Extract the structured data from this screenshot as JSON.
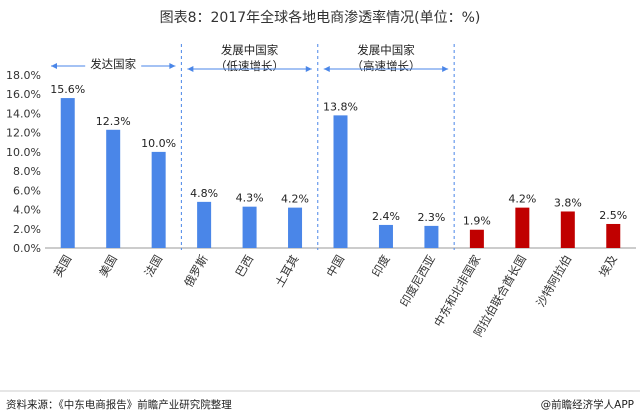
{
  "chart_data": {
    "type": "bar",
    "title": "图表8：2017年全球各地电商渗透率情况(单位：%)",
    "categories": [
      "英国",
      "美国",
      "法国",
      "俄罗斯",
      "巴西",
      "土耳其",
      "中国",
      "印度",
      "印度尼西亚",
      "中东和北非国家",
      "阿拉伯联合酋长国",
      "沙特阿拉伯",
      "埃及"
    ],
    "values": [
      15.6,
      12.3,
      10.0,
      4.8,
      4.3,
      4.2,
      13.8,
      2.4,
      2.3,
      1.9,
      4.2,
      3.8,
      2.5
    ],
    "value_labels": [
      "15.6%",
      "12.3%",
      "10.0%",
      "4.8%",
      "4.3%",
      "4.2%",
      "13.8%",
      "2.4%",
      "2.3%",
      "1.9%",
      "4.2%",
      "3.8%",
      "2.5%"
    ],
    "bar_colors": [
      "#4a86e8",
      "#4a86e8",
      "#4a86e8",
      "#4a86e8",
      "#4a86e8",
      "#4a86e8",
      "#4a86e8",
      "#4a86e8",
      "#4a86e8",
      "#c00000",
      "#c00000",
      "#c00000",
      "#c00000"
    ],
    "yticks": [
      "0.0%",
      "2.0%",
      "4.0%",
      "6.0%",
      "8.0%",
      "10.0%",
      "12.0%",
      "14.0%",
      "16.0%",
      "18.0%"
    ],
    "ylim": [
      0,
      18
    ],
    "grid": false,
    "xlabel": "",
    "ylabel": "",
    "groups": [
      {
        "lines": [
          "发达国家"
        ],
        "start": 0,
        "end": 2
      },
      {
        "lines": [
          "发展中国家",
          "（低速增长）"
        ],
        "start": 3,
        "end": 5
      },
      {
        "lines": [
          "发展中国家",
          "（高速增长）"
        ],
        "start": 6,
        "end": 8
      }
    ]
  },
  "footer": {
    "source": "资料来源：《中东电商报告》前瞻产业研究院整理",
    "brand": "@前瞻经济学人APP"
  },
  "colors": {
    "developed": "#4a86e8",
    "mena": "#c00000",
    "separator": "#4a86e8",
    "axis": "#999999"
  }
}
